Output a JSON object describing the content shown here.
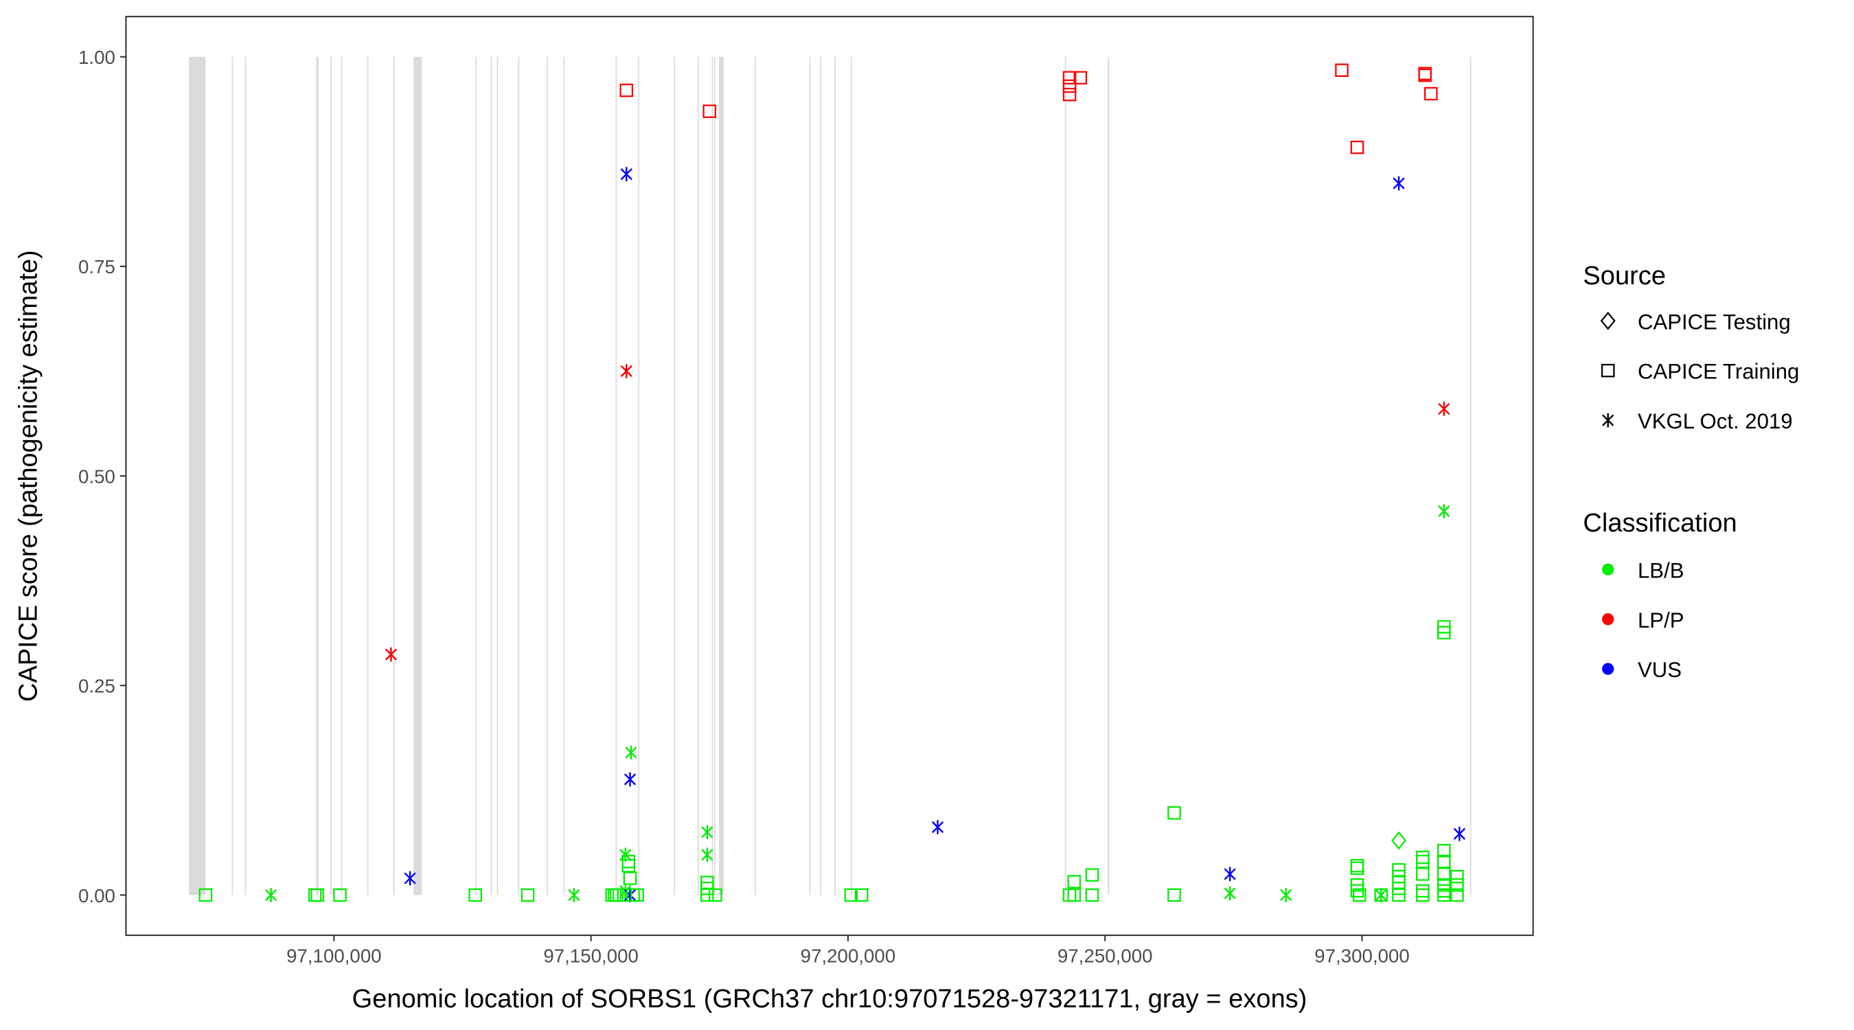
{
  "chart_data": {
    "type": "scatter",
    "title": "",
    "xlabel": "Genomic location of SORBS1 (GRCh37 chr10:97071528-97321171, gray = exons)",
    "ylabel": "CAPICE score (pathogenicity estimate)",
    "xlim": [
      97059540,
      97333280
    ],
    "ylim": [
      -0.048,
      1.048
    ],
    "x_ticks": [
      97100000,
      97150000,
      97200000,
      97250000,
      97300000
    ],
    "x_tick_labels": [
      "97,100,000",
      "97,150,000",
      "97,200,000",
      "97,250,000",
      "97,300,000"
    ],
    "y_ticks": [
      0,
      0.25,
      0.5,
      0.75,
      1.0
    ],
    "y_tick_labels": [
      "0.00",
      "0.25",
      "0.50",
      "0.75",
      "1.00"
    ],
    "grid": false,
    "legend_position": "right",
    "legend": {
      "source_title": "Source",
      "sources": [
        {
          "key": "testing",
          "label": "CAPICE Testing",
          "shape": "diamond"
        },
        {
          "key": "training",
          "label": "CAPICE Training",
          "shape": "square"
        },
        {
          "key": "vkgl",
          "label": "VKGL Oct. 2019",
          "shape": "asterisk"
        }
      ],
      "classification_title": "Classification",
      "classes": [
        {
          "key": "LB/B",
          "label": "LB/B",
          "color": "#00EE00"
        },
        {
          "key": "LP/P",
          "label": "LP/P",
          "color": "#FF0000"
        },
        {
          "key": "VUS",
          "label": "VUS",
          "color": "#0000FF"
        }
      ]
    },
    "exons": [
      [
        97071794,
        97075030
      ],
      [
        97080117,
        97080300
      ],
      [
        97082660,
        97082840
      ],
      [
        97096530,
        97096990
      ],
      [
        97099306,
        97099490
      ],
      [
        97101387,
        97101570
      ],
      [
        97106474,
        97106660
      ],
      [
        97111560,
        97111740
      ],
      [
        97115490,
        97117110
      ],
      [
        97127513,
        97127700
      ],
      [
        97130518,
        97130700
      ],
      [
        97131674,
        97131860
      ],
      [
        97135836,
        97136020
      ],
      [
        97141385,
        97141600
      ],
      [
        97144622,
        97144810
      ],
      [
        97154794,
        97154980
      ],
      [
        97159187,
        97159370
      ],
      [
        97166123,
        97166310
      ],
      [
        97170747,
        97170930
      ],
      [
        97173522,
        97173710
      ],
      [
        97173984,
        97174170
      ],
      [
        97174909,
        97175834
      ],
      [
        97181845,
        97182030
      ],
      [
        97192480,
        97192660
      ],
      [
        97194561,
        97194750
      ],
      [
        97197335,
        97197520
      ],
      [
        97200572,
        97200760
      ],
      [
        97242188,
        97242370
      ],
      [
        97250511,
        97250800
      ],
      [
        97321027,
        97321171
      ]
    ],
    "points": [
      [
        97075030,
        0,
        "training",
        "LB/B"
      ],
      [
        97087750,
        0,
        "vkgl",
        "LB/B"
      ],
      [
        97096300,
        0,
        "training",
        "LB/B"
      ],
      [
        97096760,
        0,
        "training",
        "LB/B"
      ],
      [
        97101160,
        0,
        "training",
        "LB/B"
      ],
      [
        97111100,
        0.287,
        "vkgl",
        "LP/P"
      ],
      [
        97114800,
        0.02,
        "vkgl",
        "VUS"
      ],
      [
        97127500,
        0,
        "training",
        "LB/B"
      ],
      [
        97137700,
        0,
        "training",
        "LB/B"
      ],
      [
        97146700,
        0,
        "vkgl",
        "LB/B"
      ],
      [
        97154100,
        0,
        "training",
        "LB/B"
      ],
      [
        97154600,
        0,
        "training",
        "LB/B"
      ],
      [
        97155000,
        0,
        "training",
        "LB/B"
      ],
      [
        97155500,
        0,
        "training",
        "LB/B"
      ],
      [
        97156400,
        0,
        "training",
        "LB/B"
      ],
      [
        97156900,
        0.96,
        "training",
        "LP/P"
      ],
      [
        97156900,
        0.86,
        "vkgl",
        "VUS"
      ],
      [
        97156900,
        0.625,
        "vkgl",
        "LP/P"
      ],
      [
        97156700,
        0.048,
        "vkgl",
        "LB/B"
      ],
      [
        97156700,
        0.005,
        "vkgl",
        "LB/B"
      ],
      [
        97157300,
        0.04,
        "training",
        "LB/B"
      ],
      [
        97157300,
        0.035,
        "training",
        "LB/B"
      ],
      [
        97157600,
        0.02,
        "training",
        "LB/B"
      ],
      [
        97157800,
        0.17,
        "vkgl",
        "LB/B"
      ],
      [
        97157600,
        0.138,
        "vkgl",
        "VUS"
      ],
      [
        97157600,
        0,
        "vkgl",
        "VUS"
      ],
      [
        97158200,
        0,
        "training",
        "LB/B"
      ],
      [
        97159000,
        0,
        "training",
        "LB/B"
      ],
      [
        97172600,
        0.075,
        "vkgl",
        "LB/B"
      ],
      [
        97172600,
        0.048,
        "vkgl",
        "LB/B"
      ],
      [
        97173060,
        0.935,
        "training",
        "LP/P"
      ],
      [
        97172600,
        0.015,
        "training",
        "LB/B"
      ],
      [
        97172600,
        0.008,
        "training",
        "LB/B"
      ],
      [
        97172600,
        0,
        "training",
        "LB/B"
      ],
      [
        97174200,
        0,
        "training",
        "LB/B"
      ],
      [
        97200600,
        0,
        "training",
        "LB/B"
      ],
      [
        97202650,
        0,
        "training",
        "LB/B"
      ],
      [
        97217450,
        0.081,
        "vkgl",
        "VUS"
      ],
      [
        97243100,
        0.975,
        "training",
        "LP/P"
      ],
      [
        97243100,
        0.965,
        "training",
        "LP/P"
      ],
      [
        97243100,
        0.955,
        "training",
        "LP/P"
      ],
      [
        97245200,
        0.975,
        "training",
        "LP/P"
      ],
      [
        97243100,
        0,
        "training",
        "LB/B"
      ],
      [
        97244000,
        0.016,
        "training",
        "LB/B"
      ],
      [
        97244000,
        0,
        "training",
        "LB/B"
      ],
      [
        97247500,
        0.024,
        "training",
        "LB/B"
      ],
      [
        97247500,
        0,
        "training",
        "LB/B"
      ],
      [
        97263460,
        0.098,
        "training",
        "LB/B"
      ],
      [
        97263460,
        0,
        "training",
        "LB/B"
      ],
      [
        97274300,
        0.025,
        "vkgl",
        "VUS"
      ],
      [
        97274300,
        0.002,
        "vkgl",
        "LB/B"
      ],
      [
        97285200,
        0,
        "vkgl",
        "LB/B"
      ],
      [
        97296060,
        0.984,
        "training",
        "LP/P"
      ],
      [
        97299060,
        0.892,
        "training",
        "LP/P"
      ],
      [
        97299060,
        0.035,
        "training",
        "LB/B"
      ],
      [
        97299060,
        0.032,
        "training",
        "LB/B"
      ],
      [
        97299060,
        0.012,
        "training",
        "LB/B"
      ],
      [
        97299060,
        0.005,
        "training",
        "LB/B"
      ],
      [
        97299500,
        0,
        "training",
        "LB/B"
      ],
      [
        97303700,
        0,
        "vkgl",
        "LB/B"
      ],
      [
        97303700,
        0,
        "training",
        "LB/B"
      ],
      [
        97307150,
        0.849,
        "vkgl",
        "VUS"
      ],
      [
        97307150,
        0.065,
        "testing",
        "LB/B"
      ],
      [
        97307150,
        0.03,
        "training",
        "LB/B"
      ],
      [
        97307150,
        0.022,
        "training",
        "LB/B"
      ],
      [
        97307150,
        0.015,
        "training",
        "LB/B"
      ],
      [
        97307150,
        0.008,
        "training",
        "LB/B"
      ],
      [
        97307150,
        0,
        "training",
        "LB/B"
      ],
      [
        97311800,
        0.045,
        "training",
        "LB/B"
      ],
      [
        97311800,
        0.04,
        "training",
        "LB/B"
      ],
      [
        97311800,
        0.025,
        "training",
        "LB/B"
      ],
      [
        97311800,
        0.005,
        "training",
        "LB/B"
      ],
      [
        97311800,
        0,
        "training",
        "LB/B"
      ],
      [
        97312250,
        0.98,
        "training",
        "LP/P"
      ],
      [
        97312250,
        0.978,
        "training",
        "LP/P"
      ],
      [
        97313400,
        0.956,
        "training",
        "LP/P"
      ],
      [
        97315940,
        0.58,
        "vkgl",
        "LP/P"
      ],
      [
        97315940,
        0.458,
        "vkgl",
        "LB/B"
      ],
      [
        97315940,
        0.32,
        "training",
        "LB/B"
      ],
      [
        97315940,
        0.313,
        "training",
        "LB/B"
      ],
      [
        97315940,
        0.053,
        "training",
        "LB/B"
      ],
      [
        97315940,
        0.04,
        "training",
        "LB/B"
      ],
      [
        97315940,
        0.025,
        "training",
        "LB/B"
      ],
      [
        97315940,
        0.012,
        "training",
        "LB/B"
      ],
      [
        97315940,
        0.005,
        "training",
        "LB/B"
      ],
      [
        97315940,
        0,
        "training",
        "LB/B"
      ],
      [
        97318480,
        0.022,
        "training",
        "LB/B"
      ],
      [
        97318480,
        0.012,
        "training",
        "LB/B"
      ],
      [
        97318480,
        0,
        "training",
        "LB/B"
      ],
      [
        97318950,
        0.073,
        "vkgl",
        "VUS"
      ]
    ]
  }
}
